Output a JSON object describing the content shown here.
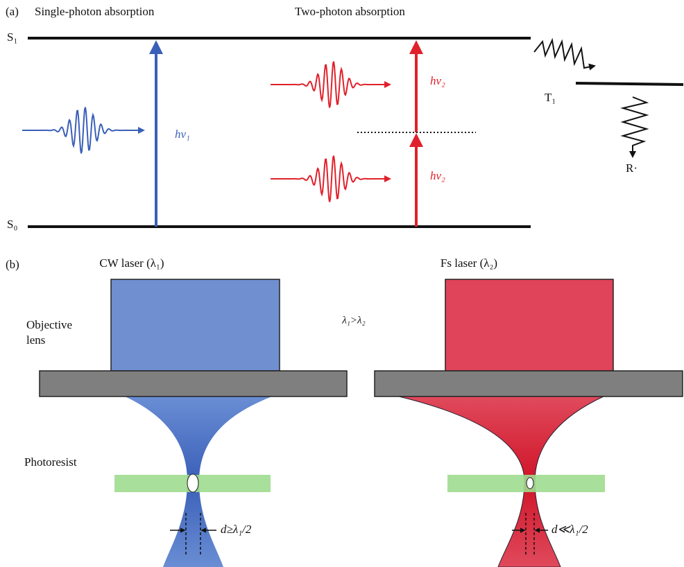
{
  "panel_a": {
    "label": "(a)",
    "single_title": "Single-photon absorption",
    "two_title": "Two-photon absorption",
    "s1": "S₁",
    "s0": "S₀",
    "hv1": "hν₁",
    "hv2_top": "hν₂",
    "hv2_bottom": "hν₂",
    "t1": "T₁",
    "radical": "R·"
  },
  "panel_b": {
    "label": "(b)",
    "cw_laser": "CW laser (λ₁)",
    "fs_laser": "Fs laser (λ₂)",
    "objective_lens": [
      "Objective",
      "lens"
    ],
    "relation": "λ₁>λ₂",
    "photoresist": "Photoresist",
    "d_cw": "d≥λ₁/2",
    "d_fs": "d≪λ₁/2"
  }
}
